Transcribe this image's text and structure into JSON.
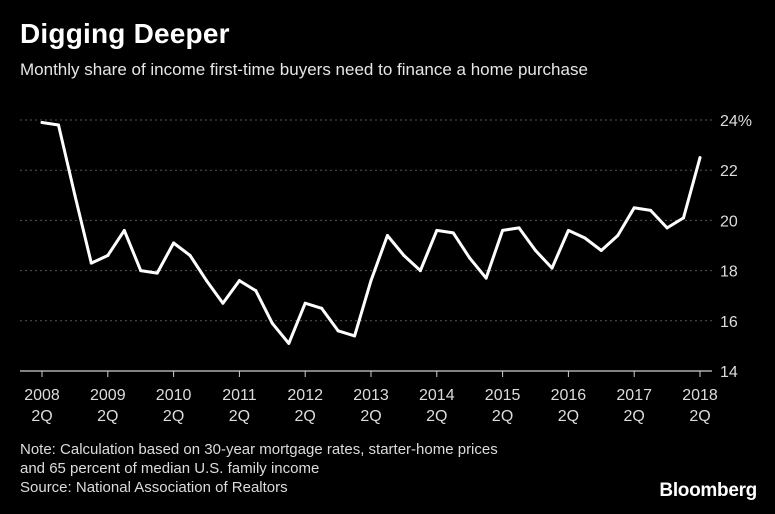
{
  "title": "Digging Deeper",
  "subtitle": "Monthly share of income first-time buyers need to finance a home purchase",
  "note_line1": "Note: Calculation based on 30-year mortgage rates, starter-home prices",
  "note_line2": "and 65 percent of median U.S. family income",
  "source": "Source: National Association of Realtors",
  "brand": "Bloomberg",
  "colors": {
    "background": "#000000",
    "line": "#ffffff",
    "grid": "#555555",
    "text": "#dcdcdc"
  },
  "chart_data": {
    "type": "line",
    "title": "Digging Deeper",
    "subtitle": "Monthly share of income first-time buyers need to finance a home purchase",
    "xlabel": "",
    "ylabel": "",
    "ylim": [
      14,
      24
    ],
    "yticks": [
      14,
      16,
      18,
      20,
      22,
      24
    ],
    "ytick_labels": [
      "14",
      "16",
      "18",
      "20",
      "22",
      "24%"
    ],
    "y_axis_position": "right",
    "grid": "horizontal dotted",
    "xticks": [
      {
        "year": "2008",
        "quarter": "2Q"
      },
      {
        "year": "2009",
        "quarter": "2Q"
      },
      {
        "year": "2010",
        "quarter": "2Q"
      },
      {
        "year": "2011",
        "quarter": "2Q"
      },
      {
        "year": "2012",
        "quarter": "2Q"
      },
      {
        "year": "2013",
        "quarter": "2Q"
      },
      {
        "year": "2014",
        "quarter": "2Q"
      },
      {
        "year": "2015",
        "quarter": "2Q"
      },
      {
        "year": "2016",
        "quarter": "2Q"
      },
      {
        "year": "2017",
        "quarter": "2Q"
      },
      {
        "year": "2018",
        "quarter": "2Q"
      }
    ],
    "series": [
      {
        "x": [
          "2008 2Q",
          "2008 3Q",
          "2008 4Q",
          "2009 1Q",
          "2009 2Q",
          "2009 3Q",
          "2009 4Q",
          "2010 1Q",
          "2010 2Q",
          "2010 3Q",
          "2010 4Q",
          "2011 1Q",
          "2011 2Q",
          "2011 3Q",
          "2011 4Q",
          "2012 1Q",
          "2012 2Q",
          "2012 3Q",
          "2012 4Q",
          "2013 1Q",
          "2013 2Q",
          "2013 3Q",
          "2013 4Q",
          "2014 1Q",
          "2014 2Q",
          "2014 3Q",
          "2014 4Q",
          "2015 1Q",
          "2015 2Q",
          "2015 3Q",
          "2015 4Q",
          "2016 1Q",
          "2016 2Q",
          "2016 3Q",
          "2016 4Q",
          "2017 1Q",
          "2017 2Q",
          "2017 3Q",
          "2017 4Q",
          "2018 1Q",
          "2018 2Q"
        ],
        "values": [
          23.9,
          23.8,
          21.0,
          18.3,
          18.6,
          19.6,
          18.0,
          17.9,
          19.1,
          18.6,
          17.6,
          16.7,
          17.6,
          17.2,
          15.9,
          15.1,
          16.7,
          16.5,
          15.6,
          15.4,
          17.6,
          19.4,
          18.6,
          18.0,
          19.6,
          19.5,
          18.5,
          17.7,
          19.6,
          19.7,
          18.8,
          18.1,
          19.6,
          19.3,
          18.8,
          19.4,
          20.5,
          20.4,
          19.7,
          20.1,
          22.5
        ]
      }
    ]
  }
}
